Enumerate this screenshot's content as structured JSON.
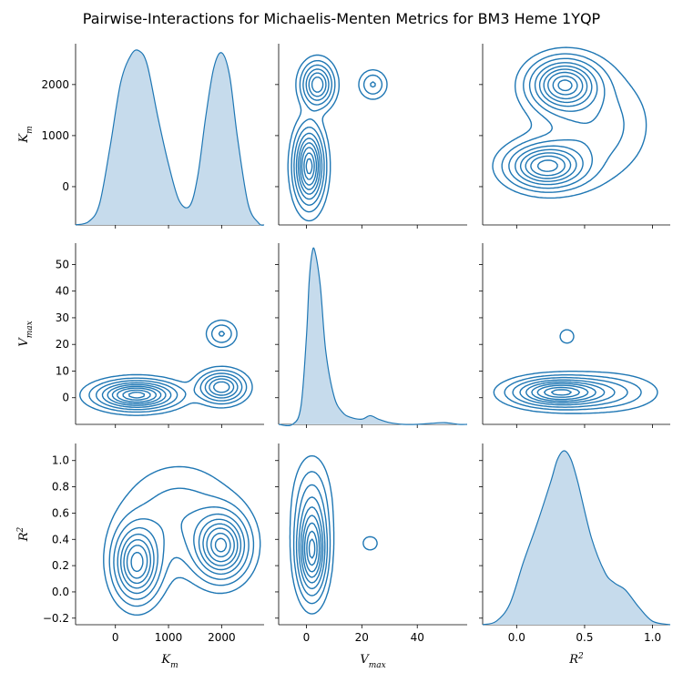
{
  "title": "Pairwise-Interactions for Michaelis-Menten Metrics for BM3 Heme 1YQP",
  "chart_data": {
    "type": "pairplot-kde",
    "variables": [
      {
        "key": "Km",
        "label_base": "K",
        "label_sub": "m",
        "label_sup": "",
        "range": [
          -750,
          2800
        ],
        "ticks": [
          0,
          1000,
          2000
        ]
      },
      {
        "key": "Vmax",
        "label_base": "V",
        "label_sub": "max",
        "label_sup": "",
        "range": [
          -10,
          58
        ],
        "ticks": [
          0,
          10,
          20,
          30,
          40,
          50
        ]
      },
      {
        "key": "R2",
        "label_base": "R",
        "label_sub": "",
        "label_sup": "2",
        "range": [
          -0.25,
          1.13
        ],
        "ticks": [
          -0.2,
          0.0,
          0.2,
          0.4,
          0.6,
          0.8,
          1.0
        ]
      }
    ],
    "x_ticks": {
      "Km": [
        0,
        1000,
        2000
      ],
      "Vmax": [
        0,
        20,
        40
      ],
      "R2": [
        0.0,
        0.5,
        1.0
      ]
    },
    "tick_labels": {
      "Km_y": [
        "0",
        "1000",
        "2000"
      ],
      "Km_x": [
        "0",
        "1000",
        "2000"
      ],
      "Vmax_y": [
        "0",
        "10",
        "20",
        "30",
        "40",
        "50"
      ],
      "Vmax_x": [
        "0",
        "20",
        "40"
      ],
      "R2_y": [
        "−0.2",
        "0.0",
        "0.2",
        "0.4",
        "0.6",
        "0.8",
        "1.0"
      ],
      "R2_x": [
        "0.0",
        "0.5",
        "1.0"
      ]
    },
    "marginal_density": {
      "Km": {
        "x": [
          -750,
          -500,
          -300,
          -100,
          100,
          300,
          450,
          600,
          800,
          1000,
          1200,
          1400,
          1550,
          1700,
          1850,
          2000,
          2150,
          2300,
          2500,
          2700,
          2800
        ],
        "y": [
          0,
          0.02,
          0.12,
          0.45,
          0.82,
          0.98,
          1.0,
          0.92,
          0.62,
          0.35,
          0.14,
          0.11,
          0.28,
          0.62,
          0.9,
          0.99,
          0.86,
          0.5,
          0.12,
          0.01,
          0
        ]
      },
      "Vmax": {
        "x": [
          -10,
          -5,
          -2,
          0,
          1,
          2,
          3,
          5,
          7,
          10,
          13,
          16,
          20,
          23,
          26,
          30,
          35,
          40,
          45,
          50,
          55,
          58
        ],
        "y": [
          0,
          0.0,
          0.1,
          0.5,
          0.82,
          0.98,
          1.0,
          0.8,
          0.42,
          0.16,
          0.07,
          0.04,
          0.03,
          0.05,
          0.03,
          0.01,
          0.0,
          0.0,
          0.006,
          0.01,
          0.0,
          0
        ]
      },
      "R2": {
        "x": [
          -0.25,
          -0.15,
          -0.05,
          0.05,
          0.15,
          0.25,
          0.3,
          0.35,
          0.4,
          0.45,
          0.55,
          0.65,
          0.72,
          0.8,
          0.9,
          1.0,
          1.13
        ],
        "y": [
          0,
          0.02,
          0.12,
          0.36,
          0.58,
          0.82,
          0.95,
          1.0,
          0.95,
          0.82,
          0.5,
          0.3,
          0.24,
          0.2,
          0.1,
          0.02,
          0
        ]
      }
    },
    "kde_clusters": {
      "Km_Vmax": [
        {
          "x": 400,
          "y": 1,
          "sx": 450,
          "sy": 3.2,
          "w": 1.0
        },
        {
          "x": 2000,
          "y": 4,
          "sx": 260,
          "sy": 3.5,
          "w": 0.7
        },
        {
          "x": 2000,
          "y": 24,
          "sx": 170,
          "sy": 3,
          "w": 0.25
        }
      ],
      "Km_R2": [
        {
          "x": 400,
          "y": 0.22,
          "sx": 260,
          "sy": 0.17,
          "w": 1.0
        },
        {
          "x": 2000,
          "y": 0.35,
          "sx": 300,
          "sy": 0.15,
          "w": 1.05
        },
        {
          "x": 1200,
          "y": 0.55,
          "sx": 650,
          "sy": 0.25,
          "w": 0.25
        }
      ],
      "Vmax_R2": [
        {
          "x": 2,
          "y": 0.3,
          "sx": 3.2,
          "sy": 0.2,
          "w": 1.0
        },
        {
          "x": 2,
          "y": 0.65,
          "sx": 4,
          "sy": 0.22,
          "w": 0.3
        },
        {
          "x": 23,
          "y": 0.37,
          "sx": 4,
          "sy": 0.08,
          "w": 0.08
        }
      ]
    },
    "color": "#1f77b4",
    "fill_color": "#c6dbec",
    "contour_levels": [
      0.06,
      0.14,
      0.24,
      0.36,
      0.48,
      0.6,
      0.72,
      0.85,
      0.95
    ]
  }
}
